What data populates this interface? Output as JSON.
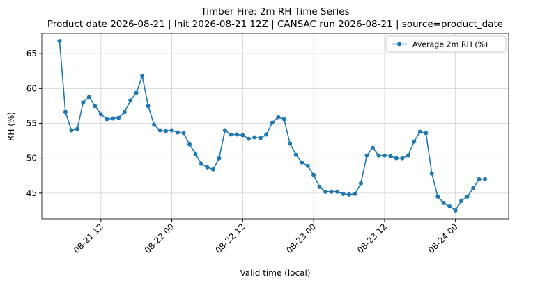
{
  "chart_data": {
    "type": "line",
    "title": "Timber Fire: 2m RH Time Series",
    "subtitle": "Product date 2026-08-21 | Init 2026-08-21 12Z | CANSAC run 2026-08-21 | source=product_date",
    "xlabel": "Valid time (local)",
    "ylabel": "RH (%)",
    "x": [
      "08-21 05",
      "08-21 06",
      "08-21 07",
      "08-21 08",
      "08-21 09",
      "08-21 10",
      "08-21 11",
      "08-21 12",
      "08-21 13",
      "08-21 14",
      "08-21 15",
      "08-21 16",
      "08-21 17",
      "08-21 18",
      "08-21 19",
      "08-21 20",
      "08-21 21",
      "08-21 22",
      "08-21 23",
      "08-22 00",
      "08-22 01",
      "08-22 02",
      "08-22 03",
      "08-22 04",
      "08-22 05",
      "08-22 06",
      "08-22 07",
      "08-22 08",
      "08-22 09",
      "08-22 10",
      "08-22 11",
      "08-22 12",
      "08-22 13",
      "08-22 14",
      "08-22 15",
      "08-22 16",
      "08-22 17",
      "08-22 18",
      "08-22 19",
      "08-22 20",
      "08-22 21",
      "08-22 22",
      "08-22 23",
      "08-23 00",
      "08-23 01",
      "08-23 02",
      "08-23 03",
      "08-23 04",
      "08-23 05",
      "08-23 06",
      "08-23 07",
      "08-23 08",
      "08-23 09",
      "08-23 10",
      "08-23 11",
      "08-23 12",
      "08-23 13",
      "08-23 14",
      "08-23 15",
      "08-23 16",
      "08-23 17",
      "08-23 18",
      "08-23 19",
      "08-23 20",
      "08-23 21",
      "08-23 22",
      "08-23 23",
      "08-24 00",
      "08-24 01",
      "08-24 02",
      "08-24 03",
      "08-24 04",
      "08-24 05"
    ],
    "series": [
      {
        "name": "Average 2m RH (%)",
        "color": "#1f77b4",
        "values": [
          66.8,
          56.6,
          54.0,
          54.2,
          58.0,
          58.8,
          57.5,
          56.3,
          55.6,
          55.7,
          55.8,
          56.6,
          58.3,
          59.4,
          61.8,
          57.5,
          54.8,
          54.0,
          53.9,
          54.0,
          53.7,
          53.6,
          52.0,
          50.6,
          49.2,
          48.7,
          48.4,
          50.0,
          54.0,
          53.4,
          53.4,
          53.3,
          52.8,
          53.0,
          52.9,
          53.4,
          55.1,
          55.9,
          55.6,
          52.1,
          50.5,
          49.4,
          48.9,
          47.6,
          45.9,
          45.2,
          45.2,
          45.2,
          44.9,
          44.8,
          44.9,
          46.4,
          50.4,
          51.5,
          50.4,
          50.4,
          50.3,
          50.0,
          50.0,
          50.4,
          52.4,
          53.8,
          53.6,
          47.8,
          44.5,
          43.6,
          43.1,
          42.5,
          43.9,
          44.5,
          45.7,
          47.0,
          47.0
        ]
      }
    ],
    "xlim": [
      "08-21 02",
      "08-24 09"
    ],
    "xticks": [
      "08-21 12",
      "08-22 00",
      "08-22 12",
      "08-23 00",
      "08-23 12",
      "08-24 00"
    ],
    "ylim": [
      41.3,
      67.9
    ],
    "yticks": [
      45,
      50,
      55,
      60,
      65
    ],
    "grid": true,
    "legend": "upper-right"
  }
}
